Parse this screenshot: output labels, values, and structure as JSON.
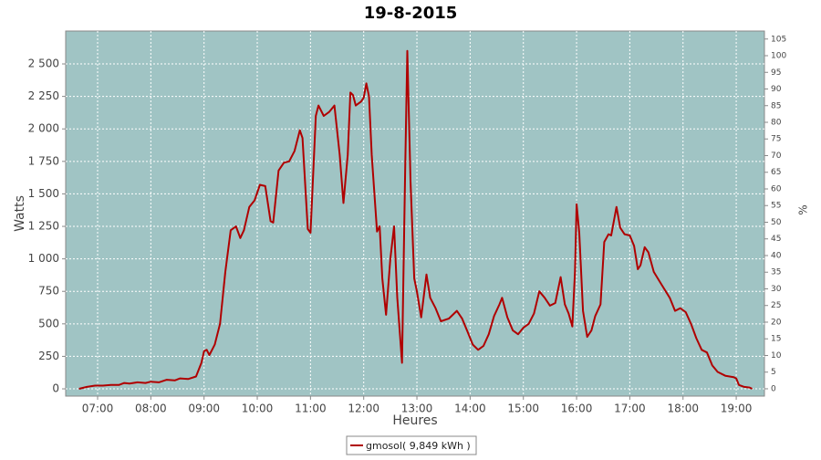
{
  "chart_data": {
    "type": "line",
    "title": "19-8-2015",
    "xlabel": "Heures",
    "ylabel": "Watts",
    "y2label": "%",
    "background": "#a0c4c4",
    "grid": true,
    "legend": "bottom",
    "xlim": [
      6.4,
      19.53
    ],
    "xticks": [
      {
        "value": 7,
        "label": "07:00"
      },
      {
        "value": 8,
        "label": "08:00"
      },
      {
        "value": 9,
        "label": "09:00"
      },
      {
        "value": 10,
        "label": "10:00"
      },
      {
        "value": 11,
        "label": "11:00"
      },
      {
        "value": 12,
        "label": "12:00"
      },
      {
        "value": 13,
        "label": "13:00"
      },
      {
        "value": 14,
        "label": "14:00"
      },
      {
        "value": 15,
        "label": "15:00"
      },
      {
        "value": 16,
        "label": "16:00"
      },
      {
        "value": 17,
        "label": "17:00"
      },
      {
        "value": 18,
        "label": "18:00"
      },
      {
        "value": 19,
        "label": "19:00"
      }
    ],
    "ylim": [
      -56,
      2753
    ],
    "yticks": [
      0,
      250,
      500,
      750,
      {
        "value": 1000,
        "label": "1 000"
      },
      {
        "value": 1250,
        "label": "1 250"
      },
      {
        "value": 1500,
        "label": "1 500"
      },
      {
        "value": 1750,
        "label": "1 750"
      },
      {
        "value": 2000,
        "label": "2 000"
      },
      {
        "value": 2250,
        "label": "2 250"
      },
      {
        "value": 2500,
        "label": "2 500"
      }
    ],
    "y2lim": [
      -2.2,
      107.4
    ],
    "y2ticks": [
      0,
      5,
      10,
      15,
      20,
      25,
      30,
      35,
      40,
      45,
      50,
      55,
      60,
      65,
      70,
      75,
      80,
      85,
      90,
      95,
      100,
      105
    ],
    "x": [
      6.65,
      6.8,
      6.95,
      7.1,
      7.25,
      7.4,
      7.5,
      7.6,
      7.75,
      7.9,
      8.0,
      8.15,
      8.3,
      8.45,
      8.55,
      8.7,
      8.85,
      8.95,
      9.0,
      9.05,
      9.1,
      9.2,
      9.3,
      9.4,
      9.5,
      9.6,
      9.68,
      9.75,
      9.85,
      9.95,
      10.05,
      10.15,
      10.25,
      10.3,
      10.4,
      10.5,
      10.6,
      10.7,
      10.8,
      10.85,
      10.95,
      11.0,
      11.1,
      11.15,
      11.25,
      11.35,
      11.45,
      11.55,
      11.62,
      11.7,
      11.75,
      11.8,
      11.85,
      11.95,
      12.0,
      12.05,
      12.1,
      12.15,
      12.25,
      12.3,
      12.35,
      12.42,
      12.5,
      12.57,
      12.63,
      12.72,
      12.78,
      12.82,
      12.88,
      12.95,
      13.0,
      13.08,
      13.18,
      13.25,
      13.35,
      13.45,
      13.6,
      13.75,
      13.85,
      13.95,
      14.05,
      14.15,
      14.25,
      14.35,
      14.45,
      14.55,
      14.6,
      14.7,
      14.8,
      14.9,
      15.0,
      15.1,
      15.2,
      15.3,
      15.4,
      15.5,
      15.6,
      15.7,
      15.78,
      15.85,
      15.92,
      15.97,
      16.0,
      16.05,
      16.12,
      16.2,
      16.28,
      16.35,
      16.45,
      16.52,
      16.6,
      16.65,
      16.75,
      16.82,
      16.9,
      17.0,
      17.08,
      17.15,
      17.2,
      17.28,
      17.35,
      17.45,
      17.6,
      17.75,
      17.85,
      17.95,
      18.05,
      18.15,
      18.25,
      18.35,
      18.45,
      18.55,
      18.65,
      18.8,
      18.95,
      19.0,
      19.05,
      19.15,
      19.25,
      19.3
    ],
    "series": [
      {
        "name": "gmosol( 9,849 kWh )",
        "color": "#b00000",
        "values": [
          0,
          15,
          25,
          25,
          30,
          30,
          45,
          40,
          50,
          45,
          55,
          50,
          70,
          65,
          80,
          75,
          95,
          200,
          290,
          300,
          260,
          340,
          500,
          900,
          1220,
          1250,
          1160,
          1220,
          1400,
          1450,
          1570,
          1560,
          1290,
          1280,
          1680,
          1740,
          1750,
          1830,
          1990,
          1930,
          1230,
          1200,
          2100,
          2180,
          2100,
          2130,
          2180,
          1800,
          1430,
          1800,
          2280,
          2260,
          2180,
          2210,
          2240,
          2350,
          2250,
          1800,
          1210,
          1250,
          850,
          570,
          1000,
          1250,
          700,
          200,
          1700,
          2600,
          1600,
          850,
          750,
          550,
          880,
          700,
          620,
          520,
          540,
          600,
          540,
          440,
          340,
          300,
          330,
          420,
          560,
          650,
          700,
          550,
          450,
          420,
          470,
          500,
          580,
          750,
          700,
          640,
          660,
          860,
          650,
          580,
          480,
          900,
          1420,
          1200,
          600,
          400,
          450,
          560,
          650,
          1130,
          1190,
          1180,
          1400,
          1240,
          1190,
          1180,
          1100,
          920,
          950,
          1090,
          1050,
          900,
          800,
          700,
          600,
          620,
          590,
          500,
          390,
          300,
          280,
          180,
          130,
          100,
          90,
          80,
          30,
          15,
          10,
          0
        ]
      }
    ]
  }
}
